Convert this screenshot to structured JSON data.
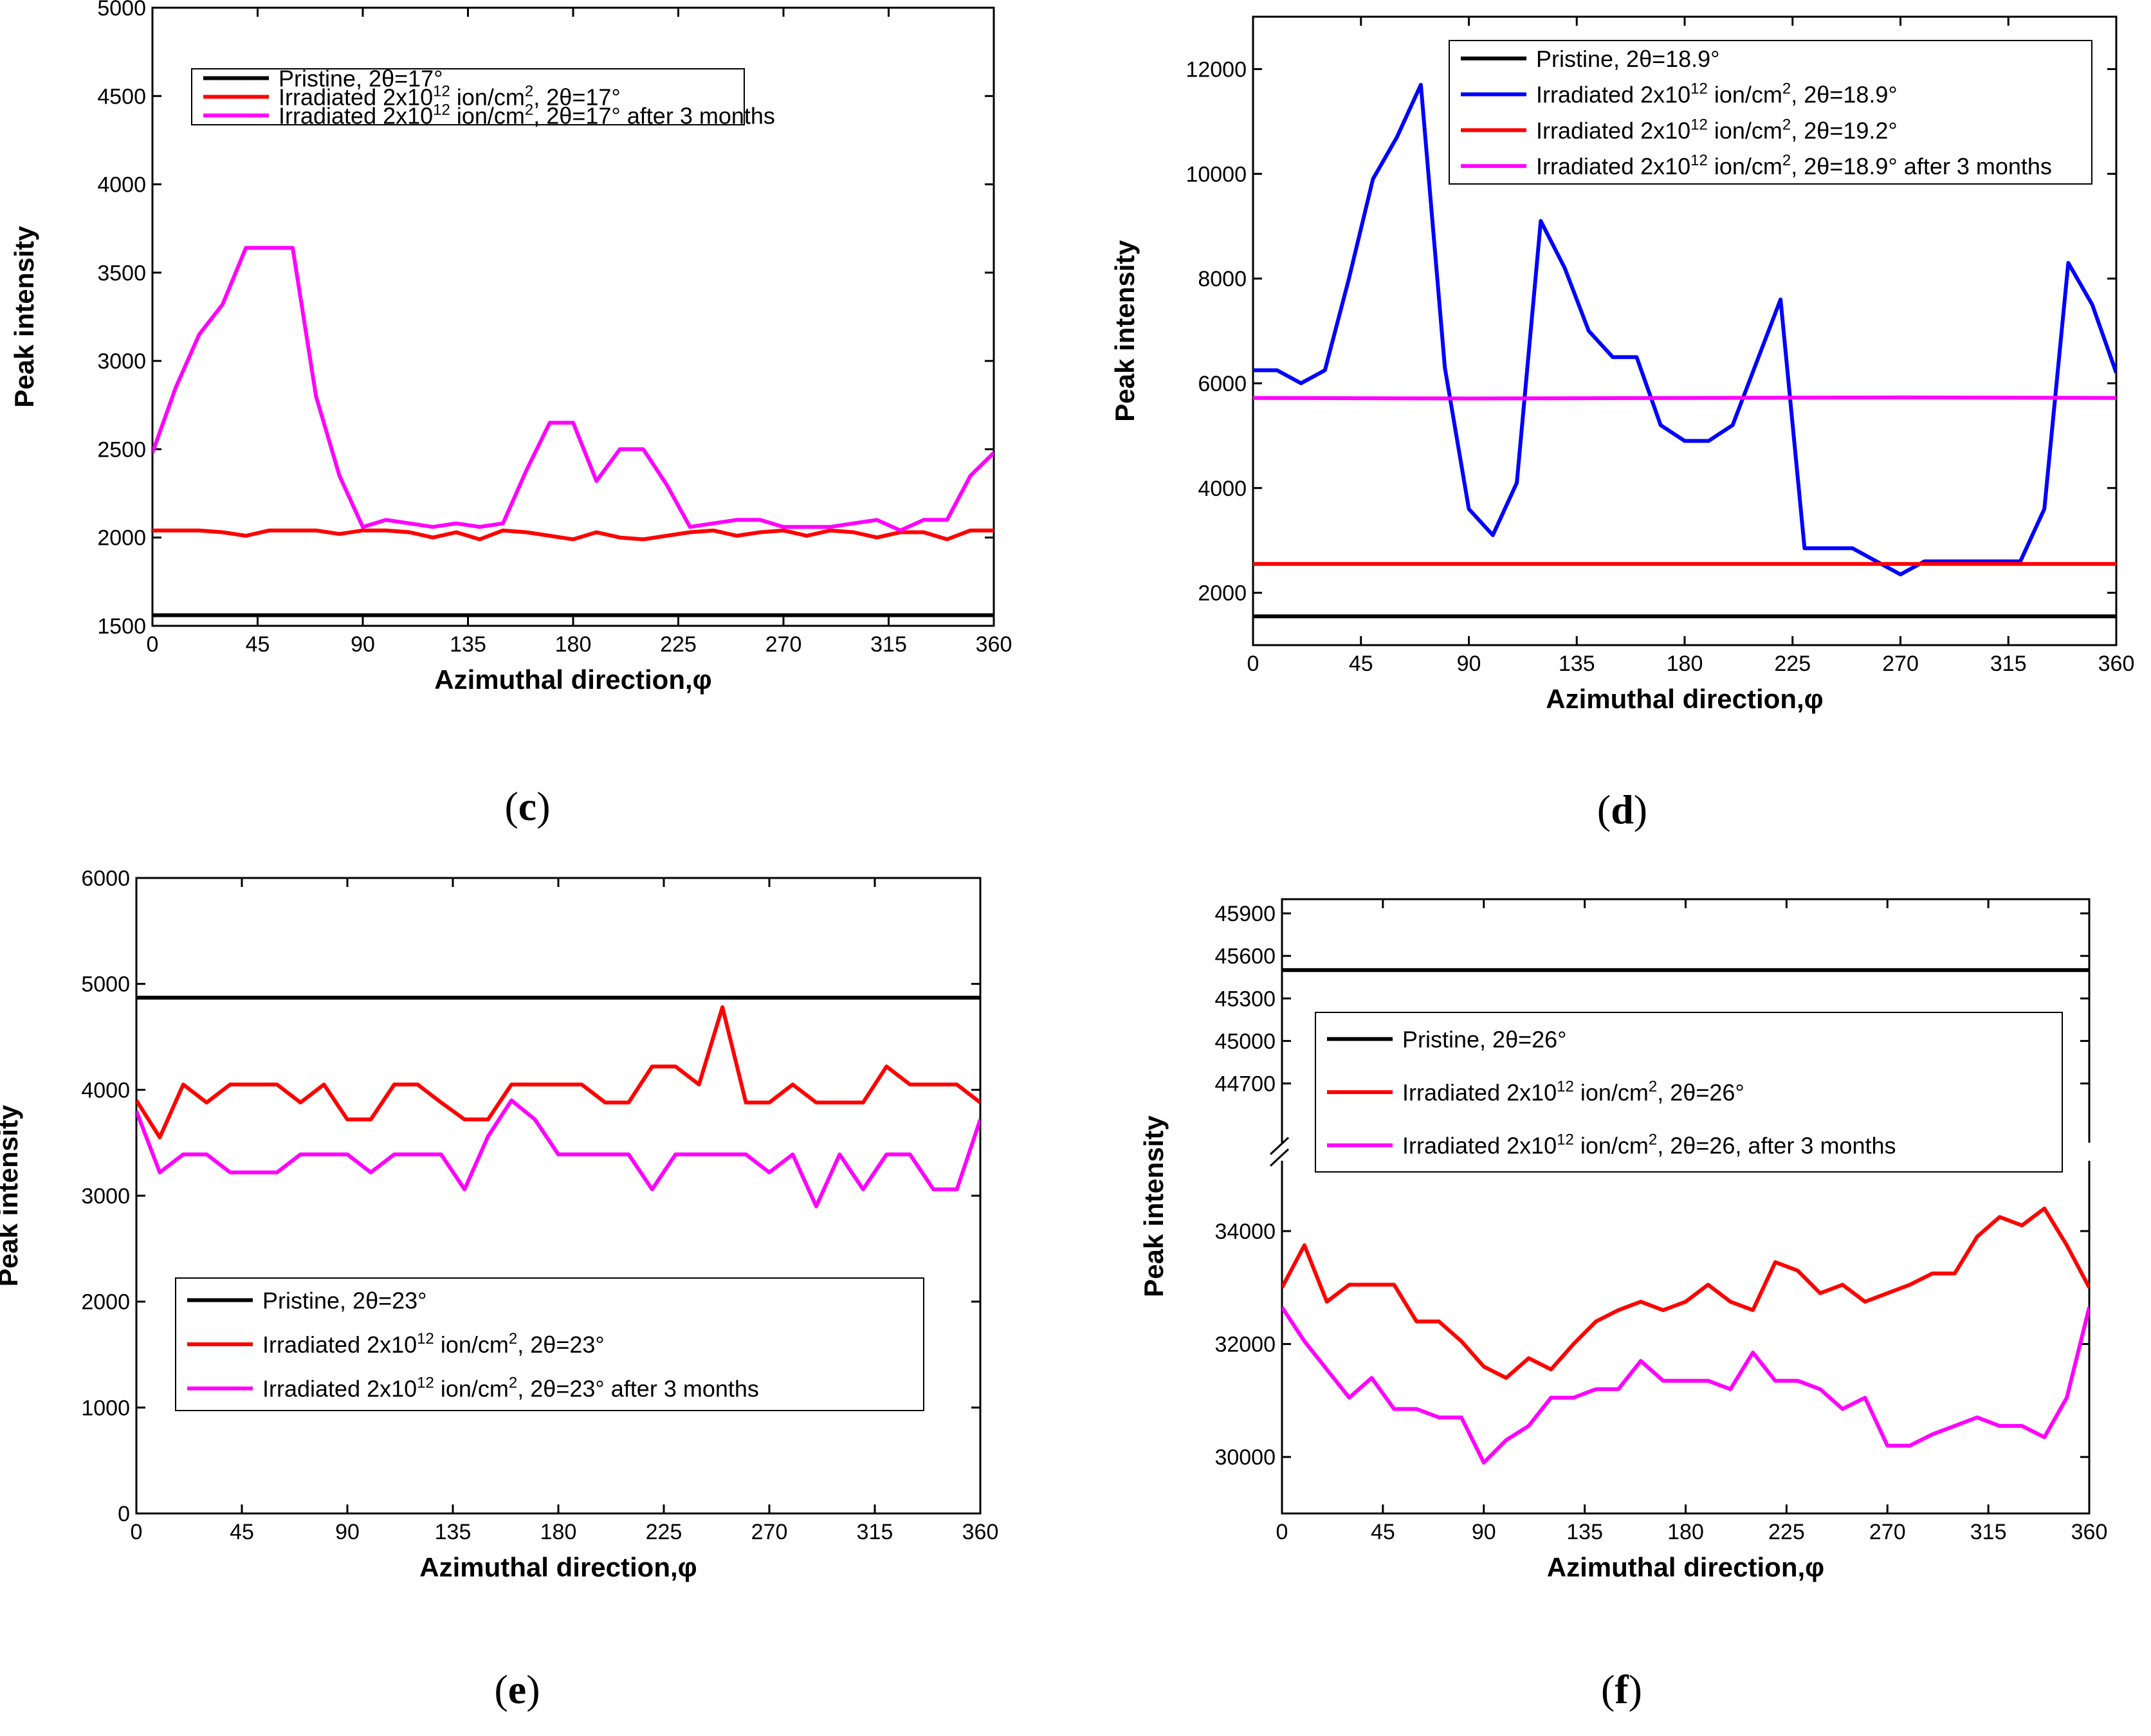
{
  "chart_data": [
    {
      "id": "c",
      "panel_label": "c",
      "type": "line",
      "xlabel": "Azimuthal direction,φ",
      "ylabel": "Peak intensity",
      "xlim": [
        0,
        360
      ],
      "ylim": [
        1500,
        5000
      ],
      "xticks": [
        0,
        45,
        90,
        135,
        180,
        225,
        270,
        315,
        360
      ],
      "yticks": [
        1500,
        2000,
        2500,
        3000,
        3500,
        4000,
        4500,
        5000
      ],
      "legend_position": "top-left",
      "series": [
        {
          "name_parts": [
            "Pristine, 2θ=17°"
          ],
          "color": "#000000",
          "x": [
            0,
            360
          ],
          "y": [
            1560,
            1560
          ]
        },
        {
          "name_parts": [
            "Irradiated 2x10",
            "12",
            " ion/cm",
            "2",
            ", 2θ=17°"
          ],
          "color": "#ff0000",
          "x": [
            0,
            10,
            20,
            30,
            40,
            50,
            60,
            70,
            80,
            90,
            100,
            110,
            120,
            130,
            140,
            150,
            160,
            170,
            180,
            190,
            200,
            210,
            220,
            230,
            240,
            250,
            260,
            270,
            280,
            290,
            300,
            310,
            320,
            330,
            340,
            350,
            360
          ],
          "y": [
            2040,
            2040,
            2040,
            2030,
            2010,
            2040,
            2040,
            2040,
            2020,
            2040,
            2040,
            2030,
            2000,
            2030,
            1990,
            2040,
            2030,
            2010,
            1990,
            2030,
            2000,
            1990,
            2010,
            2030,
            2040,
            2010,
            2030,
            2040,
            2010,
            2040,
            2030,
            2000,
            2030,
            2030,
            1990,
            2040,
            2040
          ]
        },
        {
          "name_parts": [
            "Irradiated 2x10",
            "12",
            " ion/cm",
            "2",
            ", 2θ=17° after 3 months"
          ],
          "color": "#ff00ff",
          "x": [
            0,
            10,
            20,
            30,
            40,
            50,
            60,
            70,
            80,
            90,
            100,
            110,
            120,
            130,
            140,
            150,
            160,
            170,
            180,
            190,
            200,
            210,
            220,
            230,
            240,
            250,
            260,
            270,
            280,
            290,
            300,
            310,
            320,
            330,
            340,
            350,
            360
          ],
          "y": [
            2480,
            2850,
            3150,
            3320,
            3640,
            3640,
            3640,
            2800,
            2350,
            2060,
            2100,
            2080,
            2060,
            2080,
            2060,
            2080,
            2380,
            2650,
            2650,
            2320,
            2500,
            2500,
            2300,
            2060,
            2080,
            2100,
            2100,
            2060,
            2060,
            2060,
            2080,
            2100,
            2040,
            2100,
            2100,
            2350,
            2480
          ]
        }
      ]
    },
    {
      "id": "d",
      "panel_label": "d",
      "type": "line",
      "xlabel": "Azimuthal direction,φ",
      "ylabel": "Peak intensity",
      "xlim": [
        0,
        360
      ],
      "ylim": [
        1000,
        13000
      ],
      "xticks": [
        0,
        45,
        90,
        135,
        180,
        225,
        270,
        315,
        360
      ],
      "yticks": [
        2000,
        4000,
        6000,
        8000,
        10000,
        12000
      ],
      "legend_position": "top-right",
      "series": [
        {
          "name_parts": [
            "Pristine, 2θ=18.9°"
          ],
          "color": "#000000",
          "x": [
            0,
            360
          ],
          "y": [
            1550,
            1550
          ]
        },
        {
          "name_parts": [
            "Irradiated 2x10",
            "12",
            " ion/cm",
            "2",
            ", 2θ=18.9°"
          ],
          "color": "#0000ff",
          "x": [
            0,
            10,
            20,
            30,
            40,
            50,
            60,
            70,
            80,
            90,
            100,
            110,
            120,
            130,
            140,
            150,
            160,
            170,
            180,
            190,
            200,
            210,
            220,
            230,
            240,
            250,
            260,
            270,
            280,
            290,
            300,
            310,
            320,
            330,
            340,
            350,
            360
          ],
          "y": [
            6250,
            6250,
            6000,
            6250,
            8000,
            9900,
            10700,
            11700,
            6300,
            3600,
            3100,
            4100,
            9100,
            8200,
            7000,
            6500,
            6500,
            5200,
            4900,
            4900,
            5200,
            6400,
            7600,
            2850,
            2850,
            2850,
            2600,
            2350,
            2600,
            2600,
            2600,
            2600,
            2600,
            3600,
            8300,
            7500,
            6200
          ]
        },
        {
          "name_parts": [
            "Irradiated 2x10",
            "12",
            " ion/cm",
            "2",
            ", 2θ=19.2°"
          ],
          "color": "#ff0000",
          "x": [
            0,
            360
          ],
          "y": [
            2550,
            2550
          ]
        },
        {
          "name_parts": [
            "Irradiated 2x10",
            "12",
            " ion/cm",
            "2",
            ", 2θ=18.9° after 3 months"
          ],
          "color": "#ff00ff",
          "x": [
            0,
            90,
            180,
            270,
            360
          ],
          "y": [
            5720,
            5710,
            5720,
            5730,
            5720
          ]
        }
      ]
    },
    {
      "id": "e",
      "panel_label": "e",
      "type": "line",
      "xlabel": "Azimuthal direction,φ",
      "ylabel": "Peak intensity",
      "xlim": [
        0,
        360
      ],
      "ylim": [
        0,
        6000
      ],
      "xticks": [
        0,
        45,
        90,
        135,
        180,
        225,
        270,
        315,
        360
      ],
      "yticks": [
        0,
        1000,
        2000,
        3000,
        4000,
        5000,
        6000
      ],
      "legend_position": "bottom-left",
      "series": [
        {
          "name_parts": [
            "Pristine, 2θ=23°"
          ],
          "color": "#000000",
          "x": [
            0,
            360
          ],
          "y": [
            4870,
            4870
          ]
        },
        {
          "name_parts": [
            "Irradiated 2x10",
            "12",
            " ion/cm",
            "2",
            ", 2θ=23°"
          ],
          "color": "#ff0000",
          "x": [
            0,
            10,
            20,
            30,
            40,
            50,
            60,
            70,
            80,
            90,
            100,
            110,
            120,
            130,
            140,
            150,
            160,
            170,
            180,
            190,
            200,
            210,
            220,
            230,
            240,
            250,
            260,
            270,
            280,
            290,
            300,
            310,
            320,
            330,
            340,
            350,
            360
          ],
          "y": [
            3900,
            3550,
            4050,
            3880,
            4050,
            4050,
            4050,
            3880,
            4050,
            3720,
            3720,
            4050,
            4050,
            3880,
            3720,
            3720,
            4050,
            4050,
            4050,
            4050,
            3880,
            3880,
            4220,
            4220,
            4050,
            4780,
            3880,
            3880,
            4050,
            3880,
            3880,
            3880,
            4220,
            4050,
            4050,
            4050,
            3880
          ]
        },
        {
          "name_parts": [
            "Irradiated 2x10",
            "12",
            " ion/cm",
            "2",
            ", 2θ=23° after 3 months"
          ],
          "color": "#ff00ff",
          "x": [
            0,
            10,
            20,
            30,
            40,
            50,
            60,
            70,
            80,
            90,
            100,
            110,
            120,
            130,
            140,
            150,
            160,
            170,
            180,
            190,
            200,
            210,
            220,
            230,
            240,
            250,
            260,
            270,
            280,
            290,
            300,
            310,
            320,
            330,
            340,
            350,
            360
          ],
          "y": [
            3800,
            3220,
            3390,
            3390,
            3220,
            3220,
            3220,
            3390,
            3390,
            3390,
            3220,
            3390,
            3390,
            3390,
            3060,
            3560,
            3900,
            3720,
            3390,
            3390,
            3390,
            3390,
            3060,
            3390,
            3390,
            3390,
            3390,
            3220,
            3390,
            2900,
            3390,
            3060,
            3390,
            3390,
            3060,
            3060,
            3720
          ]
        }
      ]
    },
    {
      "id": "f",
      "panel_label": "f",
      "type": "line",
      "xlabel": "Azimuthal direction,φ",
      "ylabel": "Peak intensity",
      "xlim": [
        0,
        360
      ],
      "ylim": [
        29000,
        46000
      ],
      "axis_break": {
        "lower_max": 35200,
        "upper_min": 44300
      },
      "xticks": [
        0,
        45,
        90,
        135,
        180,
        225,
        270,
        315,
        360
      ],
      "yticks_lower": [
        30000,
        32000,
        34000
      ],
      "yticks_upper": [
        44700,
        45000,
        45300,
        45600,
        45900
      ],
      "legend_position": "top-left",
      "series": [
        {
          "name_parts": [
            "Pristine, 2θ=26°"
          ],
          "color": "#000000",
          "x": [
            0,
            360
          ],
          "y": [
            45500,
            45500
          ]
        },
        {
          "name_parts": [
            "Irradiated 2x10",
            "12",
            " ion/cm",
            "2",
            ", 2θ=26°"
          ],
          "color": "#ff0000",
          "x": [
            0,
            10,
            20,
            30,
            40,
            50,
            60,
            70,
            80,
            90,
            100,
            110,
            120,
            130,
            140,
            150,
            160,
            170,
            180,
            190,
            200,
            210,
            220,
            230,
            240,
            250,
            260,
            270,
            280,
            290,
            300,
            310,
            320,
            330,
            340,
            350,
            360
          ],
          "y": [
            33000,
            33750,
            32750,
            33050,
            33050,
            33050,
            32400,
            32400,
            32050,
            31600,
            31400,
            31750,
            31550,
            32000,
            32400,
            32600,
            32750,
            32600,
            32750,
            33050,
            32750,
            32600,
            33450,
            33300,
            32900,
            33050,
            32750,
            32900,
            33050,
            33250,
            33250,
            33900,
            34250,
            34100,
            34400,
            33750,
            33000
          ]
        },
        {
          "name_parts": [
            "Irradiated 2x10",
            "12",
            " ion/cm",
            "2",
            ", 2θ=26, after 3 months"
          ],
          "color": "#ff00ff",
          "x": [
            0,
            10,
            20,
            30,
            40,
            50,
            60,
            70,
            80,
            90,
            100,
            110,
            120,
            130,
            140,
            150,
            160,
            170,
            180,
            190,
            200,
            210,
            220,
            230,
            240,
            250,
            260,
            270,
            280,
            290,
            300,
            310,
            320,
            330,
            340,
            350,
            360
          ],
          "y": [
            32650,
            32050,
            31550,
            31050,
            31400,
            30850,
            30850,
            30700,
            30700,
            29900,
            30300,
            30550,
            31050,
            31050,
            31200,
            31200,
            31700,
            31350,
            31350,
            31350,
            31200,
            31850,
            31350,
            31350,
            31200,
            30850,
            31050,
            30200,
            30200,
            30400,
            30550,
            30700,
            30550,
            30550,
            30350,
            31050,
            32650
          ]
        }
      ]
    }
  ]
}
